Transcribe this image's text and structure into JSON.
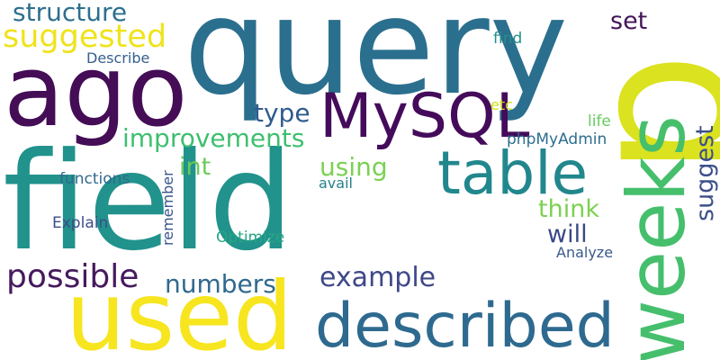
{
  "words": [
    {
      "text": "query",
      "color": "#2b6f8e",
      "vertical": false
    },
    {
      "text": "field",
      "color": "#21928c",
      "vertical": false
    },
    {
      "text": "p",
      "color": "#dbe21f",
      "vertical": true
    },
    {
      "text": "weeks",
      "color": "#46bf6d",
      "vertical": true
    },
    {
      "text": "ago",
      "color": "#440d56",
      "vertical": false
    },
    {
      "text": "used",
      "color": "#f7e51f",
      "vertical": false
    },
    {
      "text": "MySQL",
      "color": "#450b5b",
      "vertical": false
    },
    {
      "text": "described",
      "color": "#2e6a8f",
      "vertical": false
    },
    {
      "text": "table",
      "color": "#21878d",
      "vertical": false
    },
    {
      "text": "suggested",
      "color": "#efe31c",
      "vertical": false
    },
    {
      "text": "structure",
      "color": "#2d6f8e",
      "vertical": false
    },
    {
      "text": "improvements",
      "color": "#3ebf70",
      "vertical": false
    },
    {
      "text": "possible",
      "color": "#461a5e",
      "vertical": false
    },
    {
      "text": "example",
      "color": "#3f4889",
      "vertical": false
    },
    {
      "text": "numbers",
      "color": "#2f698e",
      "vertical": false
    },
    {
      "text": "type",
      "color": "#2f5b8d",
      "vertical": false
    },
    {
      "text": "int",
      "color": "#6bcc5a",
      "vertical": false
    },
    {
      "text": "using",
      "color": "#7ad152",
      "vertical": false
    },
    {
      "text": "think",
      "color": "#7bd150",
      "vertical": false
    },
    {
      "text": "will",
      "color": "#3a4889",
      "vertical": false
    },
    {
      "text": "set",
      "color": "#431559",
      "vertical": false
    },
    {
      "text": "suggest",
      "color": "#3c4f8a",
      "vertical": true
    },
    {
      "text": "find",
      "color": "#238f8d",
      "vertical": false
    },
    {
      "text": "Describe",
      "color": "#355f8d",
      "vertical": false
    },
    {
      "text": "etc",
      "color": "#cde11d",
      "vertical": false
    },
    {
      "text": "life",
      "color": "#66cb5d",
      "vertical": false
    },
    {
      "text": "phpMyAdmin",
      "color": "#2d6e8e",
      "vertical": false
    },
    {
      "text": "functions",
      "color": "#31688e",
      "vertical": false
    },
    {
      "text": "avail",
      "color": "#26818e",
      "vertical": false
    },
    {
      "text": "Explain",
      "color": "#3c4e8a",
      "vertical": false
    },
    {
      "text": "remember",
      "color": "#39568c",
      "vertical": true
    },
    {
      "text": "Optimize",
      "color": "#26a784",
      "vertical": false
    },
    {
      "text": "Analyze",
      "color": "#3a5a8c",
      "vertical": false
    }
  ]
}
